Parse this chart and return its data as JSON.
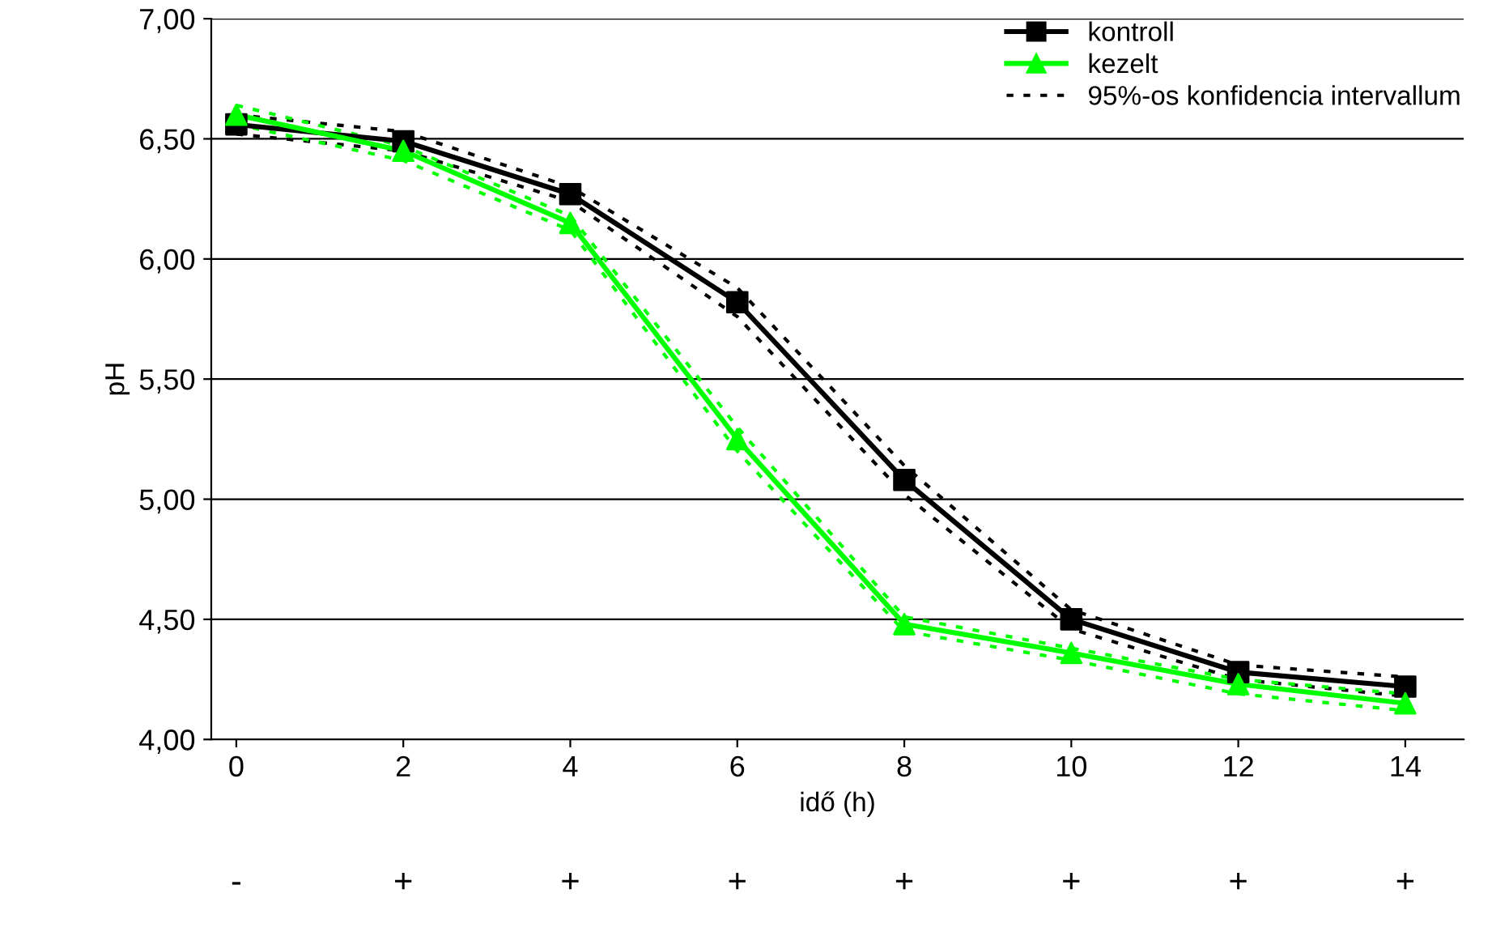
{
  "chart_data": {
    "type": "line",
    "xlabel": "idő (h)",
    "ylabel": "pH",
    "x": [
      0,
      2,
      4,
      6,
      8,
      10,
      12,
      14
    ],
    "series": [
      {
        "name": "kontroll",
        "color": "#000000",
        "marker": "square",
        "values": [
          6.56,
          6.49,
          6.27,
          5.82,
          5.08,
          4.5,
          4.28,
          4.22
        ]
      },
      {
        "name": "kezelt",
        "color": "#00ff00",
        "marker": "triangle",
        "values": [
          6.6,
          6.45,
          6.15,
          5.25,
          4.48,
          4.36,
          4.23,
          4.15
        ]
      },
      {
        "name": "95%-os konfidencia intervallum",
        "color": "#000000",
        "marker": "none",
        "line_style": "dotted",
        "values": [
          6.6,
          6.53,
          6.3,
          5.88,
          5.14,
          4.54,
          4.31,
          4.26
        ]
      },
      {
        "color": "#000000",
        "marker": "none",
        "line_style": "dotted",
        "values": [
          6.52,
          6.45,
          6.24,
          5.76,
          5.02,
          4.46,
          4.25,
          4.18
        ]
      },
      {
        "color": "#00ff00",
        "marker": "none",
        "line_style": "dotted",
        "values": [
          6.64,
          6.47,
          6.18,
          5.3,
          4.51,
          4.38,
          4.25,
          4.19
        ]
      },
      {
        "color": "#00ff00",
        "marker": "none",
        "line_style": "dotted",
        "values": [
          6.56,
          6.41,
          6.12,
          5.2,
          4.45,
          4.33,
          4.19,
          4.12
        ]
      }
    ],
    "annotations": [
      "-",
      "+",
      "+",
      "+",
      "+",
      "+",
      "+",
      "+"
    ],
    "xlim": [
      -0.3,
      14.7
    ],
    "xticks": [
      0,
      2,
      4,
      6,
      8,
      10,
      12,
      14
    ],
    "ylim": [
      4.0,
      7.0
    ],
    "yticks": [
      {
        "value": 4.0,
        "label": "4,00"
      },
      {
        "value": 4.5,
        "label": "4,50"
      },
      {
        "value": 5.0,
        "label": "5,00"
      },
      {
        "value": 5.5,
        "label": "5,50"
      },
      {
        "value": 6.0,
        "label": "6,00"
      },
      {
        "value": 6.5,
        "label": "6,50"
      },
      {
        "value": 7.0,
        "label": "7,00"
      }
    ],
    "grid": "y",
    "legend": "top right"
  }
}
